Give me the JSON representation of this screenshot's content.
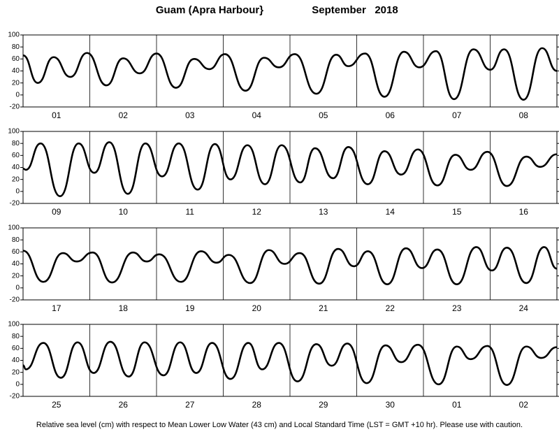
{
  "title": "Guam (Apra Harbour}",
  "period": "September   2018",
  "footnote": "Relative sea level (cm) with respect to Mean Lower Low Water (43 cm) and Local Standard Time (LST = GMT +10 hr). Please use with caution.",
  "chart_data": [
    {
      "type": "line",
      "color": "#000000",
      "xlim": [
        0,
        192
      ],
      "ylim": [
        -20,
        100
      ],
      "yticks": [
        -20,
        0,
        20,
        40,
        60,
        80,
        100
      ],
      "categories": [
        "01",
        "02",
        "03",
        "04",
        "05",
        "06",
        "07",
        "08"
      ],
      "x": [
        0,
        5.3,
        11,
        17,
        23,
        30,
        36,
        42,
        48,
        55,
        61.5,
        67,
        72.6,
        80,
        86.7,
        92,
        97.7,
        105.5,
        112.6,
        117,
        123,
        130,
        137,
        142.5,
        148.5,
        155,
        162,
        168,
        173,
        180,
        186.7,
        192
      ],
      "values": [
        66,
        20,
        63,
        30,
        70,
        16,
        61,
        36,
        69,
        12,
        60,
        43,
        68,
        7,
        62,
        46,
        68,
        2,
        67,
        48,
        69,
        -3,
        72,
        46,
        73,
        -7,
        76,
        42,
        76,
        -8,
        78,
        40
      ]
    },
    {
      "type": "line",
      "color": "#000000",
      "xlim": [
        0,
        192
      ],
      "ylim": [
        -20,
        100
      ],
      "yticks": [
        -20,
        0,
        20,
        40,
        60,
        80,
        100
      ],
      "categories": [
        "09",
        "10",
        "11",
        "12",
        "13",
        "14",
        "15",
        "16"
      ],
      "x": [
        0,
        1,
        6.3,
        13.3,
        20,
        25.6,
        31,
        37.7,
        44,
        50,
        56,
        62.8,
        69,
        74.6,
        80.7,
        87,
        93,
        99.7,
        105,
        111.5,
        117,
        124,
        130,
        136,
        142,
        149,
        155.5,
        161,
        167,
        174,
        181,
        186,
        192
      ],
      "values": [
        38,
        36,
        80,
        -8,
        80,
        31,
        82,
        -4,
        80,
        25,
        80,
        3,
        79,
        20,
        77,
        12,
        77,
        15,
        72,
        22,
        74,
        12,
        67,
        28,
        70,
        10,
        61,
        36,
        66,
        9,
        58,
        41,
        62
      ]
    },
    {
      "type": "line",
      "color": "#000000",
      "xlim": [
        0,
        192
      ],
      "ylim": [
        -20,
        100
      ],
      "yticks": [
        -20,
        0,
        20,
        40,
        60,
        80,
        100
      ],
      "categories": [
        "17",
        "18",
        "19",
        "20",
        "21",
        "22",
        "23",
        "24"
      ],
      "x": [
        0,
        7.3,
        14.3,
        19.3,
        25,
        32,
        39.5,
        44.5,
        49,
        56.8,
        64,
        69.6,
        74,
        81.7,
        88.4,
        94,
        99.5,
        106.5,
        113.3,
        119,
        124,
        131,
        137.7,
        143.5,
        149,
        156,
        163,
        168.6,
        174,
        181,
        187.4,
        192
      ],
      "values": [
        62,
        10,
        58,
        44,
        59,
        9,
        59,
        44,
        56,
        10,
        61,
        42,
        55,
        8,
        63,
        40,
        58,
        7,
        65,
        36,
        61,
        6,
        66,
        33,
        64,
        6,
        68,
        29,
        67,
        8,
        68,
        32
      ]
    },
    {
      "type": "line",
      "color": "#000000",
      "xlim": [
        0,
        192
      ],
      "ylim": [
        -20,
        100
      ],
      "yticks": [
        -20,
        0,
        20,
        40,
        60,
        80,
        100
      ],
      "categories": [
        "25",
        "26",
        "27",
        "28",
        "29",
        "30",
        "01",
        "02"
      ],
      "x": [
        0,
        1,
        7.3,
        13.6,
        19.6,
        25.4,
        31.4,
        38,
        43.7,
        50.5,
        56.5,
        62.3,
        68,
        74.6,
        81,
        86,
        92,
        98.7,
        105.5,
        111,
        116.6,
        123.6,
        130.4,
        136,
        142,
        149.5,
        156,
        161,
        167,
        174,
        181,
        186.4,
        192
      ],
      "values": [
        32,
        25,
        69,
        11,
        70,
        19,
        71,
        13,
        70,
        15,
        70,
        19,
        69,
        9,
        69,
        25,
        69,
        5,
        67,
        31,
        68,
        2,
        65,
        37,
        66,
        0,
        63,
        42,
        64,
        -1,
        63,
        44,
        62
      ]
    }
  ]
}
